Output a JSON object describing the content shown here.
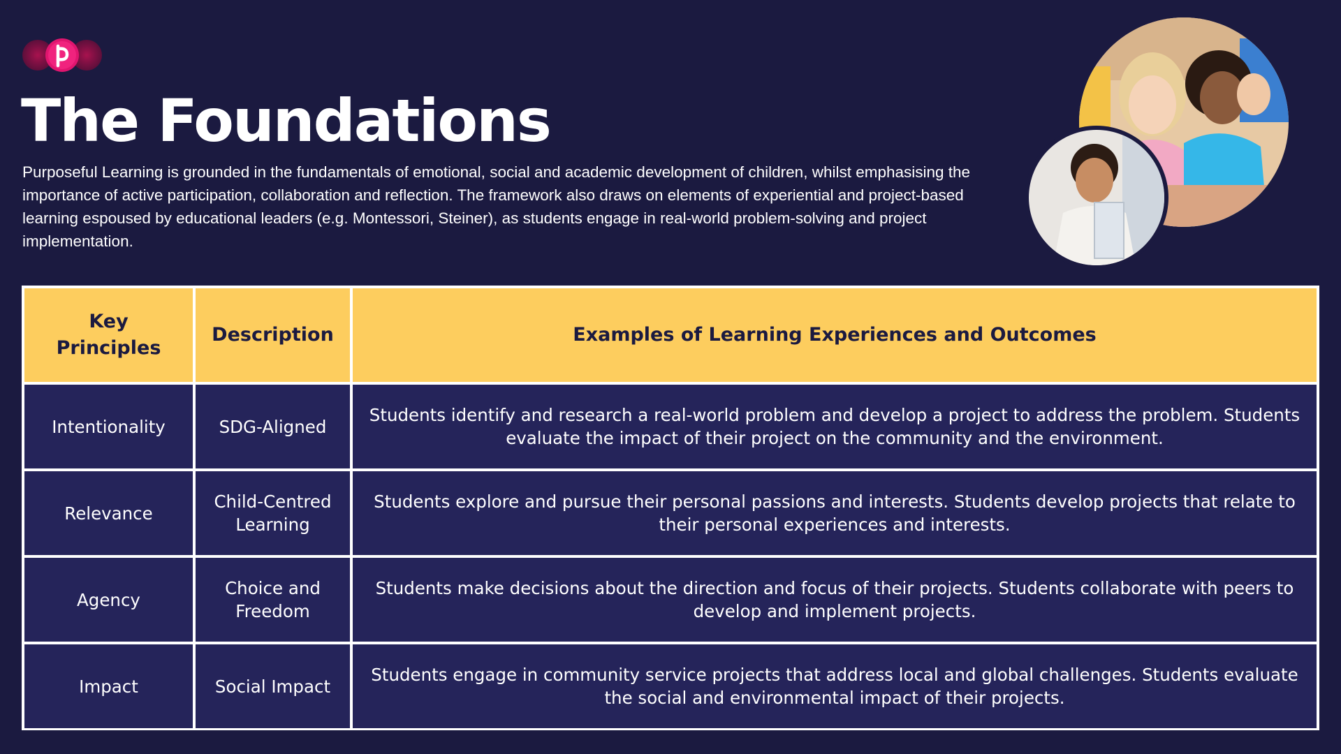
{
  "header": {
    "logo_icon": "tp-logo-icon",
    "title": "The Foundations",
    "intro": "Purposeful Learning is grounded in the fundamentals of emotional, social and academic development of children, whilst emphasising the importance of active participation, collaboration and reflection. The framework also draws on elements of experiential and project-based learning espoused by educational leaders (e.g. Montessori, Steiner), as students engage in real-world problem-solving and project implementation."
  },
  "images": {
    "large_photo": "children-audience-photo",
    "small_photo": "boy-holding-paper-photo"
  },
  "colors": {
    "background": "#1b1a40",
    "header_fill": "#fdcd5e",
    "cell_fill": "#25245a",
    "logo_accent": "#d81b6a"
  },
  "table": {
    "headers": [
      "Key Principles",
      "Description",
      "Examples of Learning Experiences and Outcomes"
    ],
    "rows": [
      {
        "principle": "Intentionality",
        "description": "SDG-Aligned",
        "examples": "Students identify and research a real-world problem and develop a project to address the problem.  Students evaluate the impact of their project on the community and the environment."
      },
      {
        "principle": "Relevance",
        "description": "Child-Centred Learning",
        "examples": "Students explore and pursue their personal passions and interests. Students develop projects that relate to their personal experiences and interests."
      },
      {
        "principle": "Agency",
        "description": "Choice and Freedom",
        "examples": "Students make decisions about the direction and focus of their projects.  Students collaborate with peers to develop and implement projects."
      },
      {
        "principle": "Impact",
        "description": "Social Impact",
        "examples": "Students engage in community service projects that address local and global challenges.  Students evaluate the social and environmental impact of their projects."
      }
    ]
  }
}
